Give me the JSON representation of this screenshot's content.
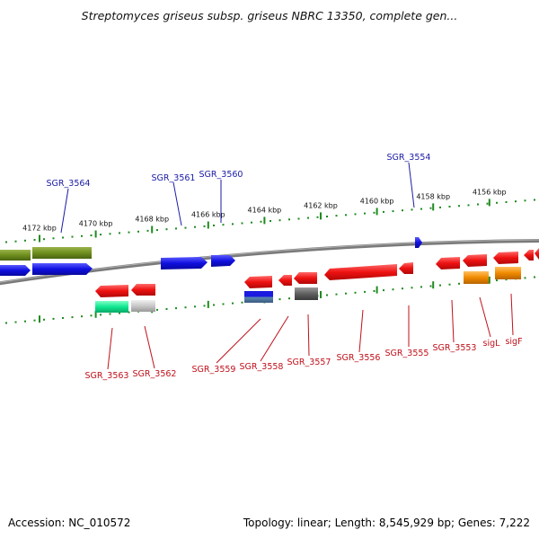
{
  "title": "Streptomyces griseus subsp. griseus NBRC 13350, complete gen...",
  "footer": {
    "accession": "Accession: NC_010572",
    "topology": "Topology: linear; Length: 8,545,929 bp; Genes: 7,222"
  },
  "ruler_ticks": [
    {
      "label": "4172 kbp",
      "pos": 4172
    },
    {
      "label": "4170 kbp",
      "pos": 4170
    },
    {
      "label": "4168 kbp",
      "pos": 4168
    },
    {
      "label": "4166 kbp",
      "pos": 4166
    },
    {
      "label": "4164 kbp",
      "pos": 4164
    },
    {
      "label": "4162 kbp",
      "pos": 4162
    },
    {
      "label": "4160 kbp",
      "pos": 4160
    },
    {
      "label": "4158 kbp",
      "pos": 4158
    },
    {
      "label": "4156 kbp",
      "pos": 4156
    }
  ],
  "genes_top": [
    {
      "name": "SGR_3564"
    },
    {
      "name": "SGR_3561"
    },
    {
      "name": "SGR_3560"
    },
    {
      "name": "SGR_3554"
    }
  ],
  "genes_bottom": [
    {
      "name": "SGR_3563"
    },
    {
      "name": "SGR_3562"
    },
    {
      "name": "SGR_3559"
    },
    {
      "name": "SGR_3558"
    },
    {
      "name": "SGR_3557"
    },
    {
      "name": "SGR_3556"
    },
    {
      "name": "SGR_3555"
    },
    {
      "name": "SGR_3553"
    },
    {
      "name": "sigL"
    },
    {
      "name": "sigF"
    }
  ],
  "colors": {
    "forward_label": "#1a1aa6",
    "reverse_label": "#c0101a",
    "ruler": "#1f8a1f",
    "backbone": "#7a7a7a",
    "blue_gene": "#1010e0",
    "red_gene": "#ee1111",
    "olive_gene": "#6e8e1e",
    "orange_gene": "#f08a00",
    "teal_gene": "#10e890",
    "gray_gene": "#c8c8c8",
    "dark_gene": "#606060"
  }
}
